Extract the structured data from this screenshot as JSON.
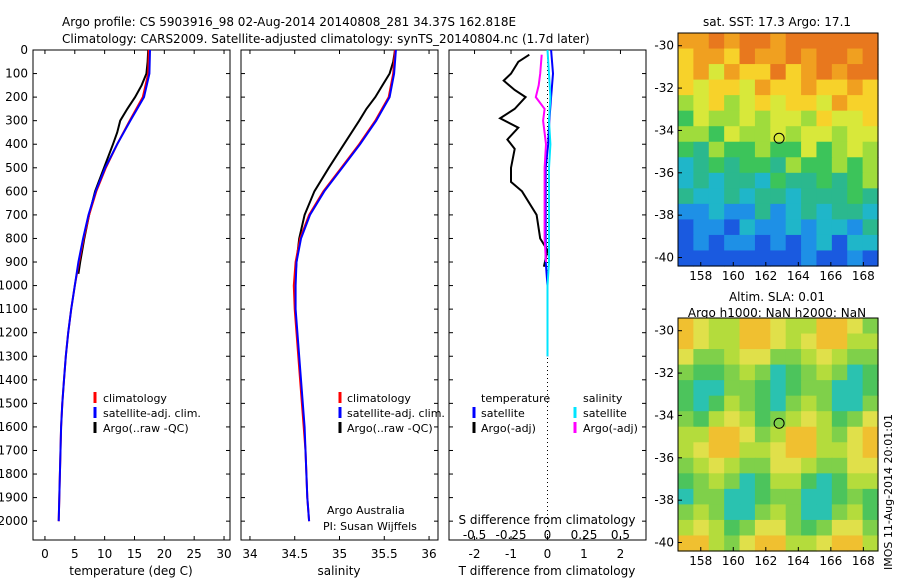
{
  "header": {
    "title_line1": "Argo profile: CS 5903916_98 02-Aug-2014 20140808_281 34.37S 162.818E",
    "title_line2": "Climatology: CARS2009. Satellite-adjusted climatology: synTS_20140804.nc (1.7d later)"
  },
  "colors": {
    "climatology": "#ff0000",
    "satellite": "#0000ff",
    "argo": "#000000",
    "salinity_satellite": "#00e5ff",
    "salinity_argo": "#ff00ff"
  },
  "depth_axis": {
    "ticks": [
      "0",
      "100",
      "200",
      "300",
      "400",
      "500",
      "600",
      "700",
      "800",
      "900",
      "1000",
      "1100",
      "1200",
      "1300",
      "1400",
      "1500",
      "1600",
      "1700",
      "1800",
      "1900",
      "2000"
    ],
    "range": [
      0,
      2080
    ],
    "inverted": true
  },
  "chart_data": [
    {
      "id": "temperature",
      "type": "line",
      "xlabel": "temperature (deg C)",
      "xticks": [
        "0",
        "5",
        "10",
        "15",
        "20",
        "25",
        "30"
      ],
      "xlim": [
        -2,
        31
      ],
      "legend": [
        "climatology",
        "satellite-adj. clim.",
        "Argo(..raw -QC)"
      ],
      "series": [
        {
          "name": "climatology",
          "color": "#ff0000",
          "depth": [
            0,
            100,
            200,
            300,
            400,
            500,
            600,
            700,
            800,
            900,
            1000,
            1100,
            1200,
            1300,
            1400,
            1500,
            1600,
            1700,
            1800,
            1900,
            2000
          ],
          "values": [
            17.4,
            17.3,
            16.4,
            14.2,
            12.1,
            10.2,
            8.6,
            7.4,
            6.5,
            5.7,
            5.0,
            4.4,
            3.9,
            3.5,
            3.2,
            2.9,
            2.7,
            2.6,
            2.5,
            2.4,
            2.3
          ]
        },
        {
          "name": "satellite-adj. clim.",
          "color": "#0000ff",
          "depth": [
            0,
            100,
            200,
            300,
            400,
            500,
            600,
            700,
            800,
            900,
            1000,
            1100,
            1200,
            1300,
            1400,
            1500,
            1600,
            1700,
            1800,
            1900,
            2000
          ],
          "values": [
            17.6,
            17.5,
            16.6,
            14.3,
            12.1,
            10.1,
            8.5,
            7.3,
            6.4,
            5.6,
            5.0,
            4.4,
            3.9,
            3.5,
            3.2,
            2.9,
            2.7,
            2.6,
            2.5,
            2.4,
            2.3
          ]
        },
        {
          "name": "Argo(..raw -QC)",
          "color": "#000000",
          "depth": [
            0,
            50,
            100,
            150,
            200,
            250,
            300,
            350,
            400,
            500,
            600,
            700,
            800,
            900,
            950
          ],
          "values": [
            17.3,
            17.2,
            17.0,
            16.2,
            15.1,
            13.8,
            12.6,
            12.1,
            11.4,
            9.9,
            8.4,
            7.4,
            6.6,
            5.9,
            5.6
          ]
        }
      ]
    },
    {
      "id": "salinity",
      "type": "line",
      "xlabel": "salinity",
      "xticks": [
        "34",
        "34.5",
        "35",
        "35.5",
        "36"
      ],
      "xlim": [
        33.9,
        36.1
      ],
      "legend": [
        "climatology",
        "satellite-adj. clim.",
        "Argo(..raw -QC)"
      ],
      "annotation": [
        "Argo Australia",
        "PI: Susan Wijffels"
      ],
      "series": [
        {
          "name": "climatology",
          "color": "#ff0000",
          "depth": [
            0,
            100,
            200,
            300,
            400,
            500,
            600,
            700,
            800,
            900,
            1000,
            1100,
            1200,
            1300,
            1400,
            1500,
            1600,
            1700,
            1800,
            1900,
            2000
          ],
          "values": [
            35.62,
            35.6,
            35.55,
            35.4,
            35.22,
            35.02,
            34.82,
            34.66,
            34.56,
            34.51,
            34.49,
            34.5,
            34.52,
            34.54,
            34.56,
            34.58,
            34.6,
            34.62,
            34.63,
            34.64,
            34.66
          ]
        },
        {
          "name": "satellite-adj. clim.",
          "color": "#0000ff",
          "depth": [
            0,
            100,
            200,
            300,
            400,
            500,
            600,
            700,
            800,
            900,
            1000,
            1100,
            1200,
            1300,
            1400,
            1500,
            1600,
            1700,
            1800,
            1900,
            2000
          ],
          "values": [
            35.63,
            35.61,
            35.56,
            35.41,
            35.23,
            35.03,
            34.83,
            34.67,
            34.57,
            34.52,
            34.51,
            34.51,
            34.53,
            34.55,
            34.57,
            34.59,
            34.61,
            34.62,
            34.63,
            34.64,
            34.66
          ]
        },
        {
          "name": "Argo(..raw -QC)",
          "color": "#000000",
          "depth": [
            0,
            50,
            100,
            200,
            250,
            300,
            400,
            500,
            600,
            700,
            800,
            900,
            950
          ],
          "values": [
            35.62,
            35.6,
            35.56,
            35.4,
            35.3,
            35.22,
            35.05,
            34.88,
            34.72,
            34.61,
            34.55,
            34.52,
            34.51
          ]
        }
      ]
    },
    {
      "id": "difference",
      "type": "line",
      "xlabel": "T difference from climatology",
      "xlabel_top": "S difference from climatology",
      "xticks_T": [
        "-2",
        "-1",
        "0",
        "1",
        "2"
      ],
      "xticks_S": [
        "-0.5",
        "-0.25",
        "0",
        "0.25",
        "0.5"
      ],
      "xlim_T": [
        -2.7,
        2.7
      ],
      "legend_T": {
        "title": "temperature",
        "items": [
          "satellite",
          "Argo(-adj)"
        ]
      },
      "legend_S": {
        "title": "salinity",
        "items": [
          "satellite",
          "Argo(-adj)"
        ]
      },
      "series": [
        {
          "name": "temperature satellite",
          "color": "#0000ff",
          "depth": [
            0,
            100,
            200,
            300,
            400,
            500,
            600,
            700,
            800,
            900,
            1000,
            1100,
            1200,
            1300
          ],
          "values": [
            0.1,
            0.15,
            0.1,
            0.05,
            0.02,
            -0.05,
            -0.05,
            -0.05,
            -0.05,
            -0.05,
            0.0,
            0.0,
            0.0,
            0.0
          ]
        },
        {
          "name": "temperature Argo(-adj)",
          "color": "#000000",
          "depth": [
            20,
            50,
            100,
            130,
            170,
            200,
            250,
            290,
            330,
            380,
            420,
            500,
            560,
            600,
            700,
            800,
            850,
            920
          ],
          "values": [
            -0.5,
            -0.8,
            -1.0,
            -1.2,
            -0.9,
            -0.6,
            -0.9,
            -1.3,
            -0.8,
            -1.1,
            -0.9,
            -1.0,
            -1.0,
            -0.7,
            -0.3,
            -0.2,
            0.0,
            -0.1
          ]
        },
        {
          "name": "salinity satellite",
          "color": "#00e5ff",
          "depth": [
            0,
            100,
            200,
            300,
            400,
            500,
            600,
            700,
            800,
            900,
            1000,
            1100,
            1200,
            1300
          ],
          "values": [
            0.0,
            0.01,
            0.02,
            0.01,
            0.02,
            0.01,
            0.01,
            0.01,
            0.01,
            0.01,
            0.0,
            0.0,
            0.0,
            0.0
          ]
        },
        {
          "name": "salinity Argo(-adj)",
          "color": "#ff00ff",
          "depth": [
            20,
            100,
            150,
            200,
            250,
            300,
            400,
            500,
            600,
            700,
            800,
            900
          ],
          "values": [
            -0.04,
            -0.05,
            -0.06,
            -0.08,
            -0.02,
            -0.03,
            -0.01,
            -0.02,
            -0.02,
            -0.02,
            -0.02,
            -0.01
          ]
        }
      ]
    }
  ],
  "maps": {
    "sst": {
      "title": "sat. SST: 17.3 Argo: 17.1",
      "yticks": [
        "-30",
        "-32",
        "-34",
        "-36",
        "-38",
        "-40"
      ],
      "xticks": [
        "158",
        "160",
        "162",
        "164",
        "166",
        "168"
      ]
    },
    "sla": {
      "title_line1": "Altim. SLA: 0.01",
      "title_line2": "Argo h1000: NaN h2000: NaN",
      "yticks": [
        "-30",
        "-32",
        "-34",
        "-36",
        "-38",
        "-40"
      ],
      "xticks": [
        "158",
        "160",
        "162",
        "164",
        "166",
        "168"
      ]
    },
    "float_position": {
      "lon": 162.818,
      "lat": -34.37
    }
  },
  "stamp": "IMOS 11-Aug-2014 20:01:01"
}
